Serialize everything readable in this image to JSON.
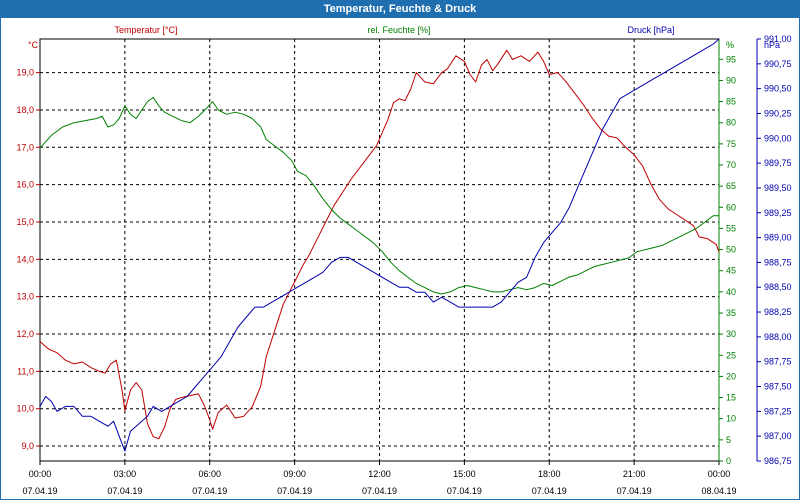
{
  "chart_data": {
    "type": "line",
    "title": "Temperatur, Feuchte & Druck",
    "axis_titles": {
      "left_unit": "°C",
      "left_series": "Temperatur [°C]",
      "middle_series": "rel. Feuchte [%]",
      "right_series": "Druck [hPa]",
      "right_pct_unit": "%",
      "right_unit": "hPa"
    },
    "x": {
      "min": 0,
      "max": 24,
      "ticks": [
        0,
        3,
        6,
        9,
        12,
        15,
        18,
        21,
        24
      ],
      "time_labels": [
        "00:00",
        "03:00",
        "06:00",
        "09:00",
        "12:00",
        "15:00",
        "18:00",
        "21:00",
        "00:00"
      ],
      "date_labels": [
        "07.04.19",
        "07.04.19",
        "07.04.19",
        "07.04.19",
        "07.04.19",
        "07.04.19",
        "07.04.19",
        "07.04.19",
        "08.04.19"
      ]
    },
    "y_temp": {
      "min": 8.6,
      "max": 19.9,
      "ticks": [
        9.0,
        10.0,
        11.0,
        12.0,
        13.0,
        14.0,
        15.0,
        16.0,
        17.0,
        18.0,
        19.0
      ],
      "labels": [
        "9,0",
        "10,0",
        "11,0",
        "12,0",
        "13,0",
        "14,0",
        "15,0",
        "16,0",
        "17,0",
        "18,0",
        "19,0"
      ]
    },
    "y_hum": {
      "min": 0,
      "max": 99.8,
      "ticks": [
        0,
        5,
        10,
        15,
        20,
        25,
        30,
        35,
        40,
        45,
        50,
        55,
        60,
        65,
        70,
        75,
        80,
        85,
        90,
        95
      ],
      "labels": [
        "0",
        "5",
        "10",
        "15",
        "20",
        "25",
        "30",
        "35",
        "40",
        "45",
        "50",
        "55",
        "60",
        "65",
        "70",
        "75",
        "80",
        "85",
        "90",
        "95"
      ]
    },
    "y_press": {
      "min": 986.75,
      "max": 991.0,
      "ticks": [
        986.75,
        987.0,
        987.25,
        987.5,
        987.75,
        988.0,
        988.25,
        988.5,
        988.75,
        989.0,
        989.25,
        989.5,
        989.75,
        990.0,
        990.25,
        990.5,
        990.75,
        991.0
      ],
      "labels": [
        "986,75",
        "987,00",
        "987,25",
        "987,50",
        "987,75",
        "988,00",
        "988,25",
        "988,50",
        "988,75",
        "989,00",
        "989,25",
        "989,50",
        "989,75",
        "990,00",
        "990,25",
        "990,50",
        "990,75",
        "991,00"
      ]
    },
    "series": [
      {
        "name": "Temperatur [°C]",
        "axis": "temp",
        "color": "#c00000",
        "points": [
          [
            0,
            11.8
          ],
          [
            0.3,
            11.6
          ],
          [
            0.6,
            11.5
          ],
          [
            0.9,
            11.3
          ],
          [
            1.2,
            11.2
          ],
          [
            1.5,
            11.25
          ],
          [
            1.8,
            11.1
          ],
          [
            2.1,
            11.0
          ],
          [
            2.3,
            10.95
          ],
          [
            2.5,
            11.2
          ],
          [
            2.7,
            11.3
          ],
          [
            2.9,
            10.5
          ],
          [
            3.0,
            9.95
          ],
          [
            3.2,
            10.5
          ],
          [
            3.4,
            10.7
          ],
          [
            3.6,
            10.5
          ],
          [
            3.8,
            9.6
          ],
          [
            4.0,
            9.25
          ],
          [
            4.2,
            9.2
          ],
          [
            4.4,
            9.5
          ],
          [
            4.6,
            10.0
          ],
          [
            4.8,
            10.25
          ],
          [
            5.0,
            10.3
          ],
          [
            5.3,
            10.35
          ],
          [
            5.6,
            10.4
          ],
          [
            5.8,
            10.1
          ],
          [
            6.0,
            9.7
          ],
          [
            6.1,
            9.45
          ],
          [
            6.3,
            9.9
          ],
          [
            6.6,
            10.1
          ],
          [
            6.9,
            9.75
          ],
          [
            7.2,
            9.8
          ],
          [
            7.5,
            10.05
          ],
          [
            7.8,
            10.6
          ],
          [
            8.0,
            11.4
          ],
          [
            8.3,
            12.1
          ],
          [
            8.6,
            12.8
          ],
          [
            8.9,
            13.25
          ],
          [
            9.1,
            13.55
          ],
          [
            9.3,
            13.85
          ],
          [
            9.5,
            14.1
          ],
          [
            9.8,
            14.55
          ],
          [
            10.1,
            15.0
          ],
          [
            10.4,
            15.45
          ],
          [
            10.7,
            15.8
          ],
          [
            11.0,
            16.15
          ],
          [
            11.3,
            16.45
          ],
          [
            11.6,
            16.75
          ],
          [
            11.9,
            17.05
          ],
          [
            12.1,
            17.4
          ],
          [
            12.3,
            17.75
          ],
          [
            12.5,
            18.2
          ],
          [
            12.7,
            18.3
          ],
          [
            12.9,
            18.25
          ],
          [
            13.1,
            18.55
          ],
          [
            13.3,
            19.0
          ],
          [
            13.6,
            18.75
          ],
          [
            13.9,
            18.7
          ],
          [
            14.2,
            19.0
          ],
          [
            14.4,
            19.1
          ],
          [
            14.7,
            19.45
          ],
          [
            15.0,
            19.3
          ],
          [
            15.2,
            18.95
          ],
          [
            15.4,
            18.75
          ],
          [
            15.6,
            19.2
          ],
          [
            15.8,
            19.35
          ],
          [
            16.0,
            19.05
          ],
          [
            16.2,
            19.25
          ],
          [
            16.5,
            19.6
          ],
          [
            16.7,
            19.35
          ],
          [
            17.0,
            19.45
          ],
          [
            17.3,
            19.3
          ],
          [
            17.6,
            19.55
          ],
          [
            17.8,
            19.3
          ],
          [
            18.0,
            18.95
          ],
          [
            18.3,
            19.0
          ],
          [
            18.6,
            18.75
          ],
          [
            18.9,
            18.45
          ],
          [
            19.2,
            18.15
          ],
          [
            19.5,
            17.8
          ],
          [
            19.8,
            17.5
          ],
          [
            20.1,
            17.3
          ],
          [
            20.4,
            17.25
          ],
          [
            20.7,
            17.0
          ],
          [
            21.0,
            16.8
          ],
          [
            21.3,
            16.5
          ],
          [
            21.6,
            16.0
          ],
          [
            21.9,
            15.6
          ],
          [
            22.2,
            15.35
          ],
          [
            22.5,
            15.2
          ],
          [
            22.8,
            15.05
          ],
          [
            23.1,
            14.9
          ],
          [
            23.3,
            14.6
          ],
          [
            23.6,
            14.55
          ],
          [
            23.9,
            14.4
          ],
          [
            24.0,
            14.2
          ]
        ]
      },
      {
        "name": "rel. Feuchte [%]",
        "axis": "hum",
        "color": "#008000",
        "points": [
          [
            0,
            74
          ],
          [
            0.4,
            77
          ],
          [
            0.8,
            79
          ],
          [
            1.2,
            80
          ],
          [
            1.6,
            80.5
          ],
          [
            2.0,
            81
          ],
          [
            2.2,
            81.5
          ],
          [
            2.4,
            79
          ],
          [
            2.6,
            79.5
          ],
          [
            2.8,
            81
          ],
          [
            3.0,
            84
          ],
          [
            3.2,
            82
          ],
          [
            3.4,
            81
          ],
          [
            3.6,
            83
          ],
          [
            3.8,
            85
          ],
          [
            4.0,
            86
          ],
          [
            4.2,
            84
          ],
          [
            4.4,
            82.5
          ],
          [
            4.7,
            81.5
          ],
          [
            5.0,
            80.5
          ],
          [
            5.3,
            80
          ],
          [
            5.6,
            81.5
          ],
          [
            5.9,
            83.5
          ],
          [
            6.1,
            85
          ],
          [
            6.3,
            83
          ],
          [
            6.6,
            82
          ],
          [
            6.9,
            82.5
          ],
          [
            7.2,
            82
          ],
          [
            7.5,
            81
          ],
          [
            7.8,
            79
          ],
          [
            8.0,
            76
          ],
          [
            8.3,
            74.5
          ],
          [
            8.6,
            73
          ],
          [
            8.9,
            71
          ],
          [
            9.1,
            68.5
          ],
          [
            9.4,
            67.5
          ],
          [
            9.7,
            65
          ],
          [
            10.0,
            62
          ],
          [
            10.3,
            59.5
          ],
          [
            10.6,
            57.5
          ],
          [
            10.9,
            56
          ],
          [
            11.2,
            54.5
          ],
          [
            11.5,
            53
          ],
          [
            11.8,
            51.5
          ],
          [
            12.1,
            49.5
          ],
          [
            12.4,
            47
          ],
          [
            12.7,
            45
          ],
          [
            13.0,
            43.5
          ],
          [
            13.3,
            42
          ],
          [
            13.6,
            41
          ],
          [
            13.9,
            40
          ],
          [
            14.2,
            39.5
          ],
          [
            14.5,
            40
          ],
          [
            14.8,
            41
          ],
          [
            15.1,
            41.5
          ],
          [
            15.4,
            41
          ],
          [
            15.7,
            40.5
          ],
          [
            16.0,
            40
          ],
          [
            16.3,
            40
          ],
          [
            16.6,
            40.5
          ],
          [
            16.9,
            41
          ],
          [
            17.2,
            40.5
          ],
          [
            17.5,
            41
          ],
          [
            17.8,
            42
          ],
          [
            18.1,
            41.5
          ],
          [
            18.4,
            42.5
          ],
          [
            18.7,
            43.5
          ],
          [
            19.0,
            44
          ],
          [
            19.3,
            45
          ],
          [
            19.6,
            46
          ],
          [
            19.9,
            46.5
          ],
          [
            20.2,
            47
          ],
          [
            20.5,
            47.5
          ],
          [
            20.8,
            48
          ],
          [
            21.1,
            49.5
          ],
          [
            21.4,
            50
          ],
          [
            21.7,
            50.5
          ],
          [
            22.0,
            51
          ],
          [
            22.3,
            52
          ],
          [
            22.6,
            53
          ],
          [
            22.9,
            54
          ],
          [
            23.2,
            55
          ],
          [
            23.5,
            56.5
          ],
          [
            23.8,
            58
          ],
          [
            24.0,
            58
          ]
        ]
      },
      {
        "name": "Druck [hPa]",
        "axis": "press",
        "color": "#0000b0",
        "points": [
          [
            0,
            987.3
          ],
          [
            0.2,
            987.4
          ],
          [
            0.4,
            987.35
          ],
          [
            0.6,
            987.25
          ],
          [
            0.9,
            987.3
          ],
          [
            1.2,
            987.3
          ],
          [
            1.5,
            987.2
          ],
          [
            1.8,
            987.2
          ],
          [
            2.1,
            987.15
          ],
          [
            2.4,
            987.1
          ],
          [
            2.6,
            987.15
          ],
          [
            2.8,
            987.0
          ],
          [
            3.0,
            986.85
          ],
          [
            3.2,
            987.05
          ],
          [
            3.4,
            987.1
          ],
          [
            3.6,
            987.15
          ],
          [
            3.8,
            987.2
          ],
          [
            4.0,
            987.3
          ],
          [
            4.3,
            987.25
          ],
          [
            4.6,
            987.3
          ],
          [
            4.9,
            987.35
          ],
          [
            5.2,
            987.4
          ],
          [
            5.5,
            987.5
          ],
          [
            5.8,
            987.6
          ],
          [
            6.1,
            987.7
          ],
          [
            6.4,
            987.8
          ],
          [
            6.7,
            987.95
          ],
          [
            7.0,
            988.1
          ],
          [
            7.3,
            988.2
          ],
          [
            7.6,
            988.3
          ],
          [
            7.9,
            988.3
          ],
          [
            8.2,
            988.35
          ],
          [
            8.5,
            988.4
          ],
          [
            8.8,
            988.45
          ],
          [
            9.1,
            988.5
          ],
          [
            9.4,
            988.55
          ],
          [
            9.7,
            988.6
          ],
          [
            10.0,
            988.65
          ],
          [
            10.3,
            988.75
          ],
          [
            10.6,
            988.8
          ],
          [
            10.9,
            988.8
          ],
          [
            11.2,
            988.75
          ],
          [
            11.5,
            988.7
          ],
          [
            11.8,
            988.65
          ],
          [
            12.1,
            988.6
          ],
          [
            12.4,
            988.55
          ],
          [
            12.7,
            988.5
          ],
          [
            13.0,
            988.5
          ],
          [
            13.3,
            988.45
          ],
          [
            13.6,
            988.45
          ],
          [
            13.9,
            988.35
          ],
          [
            14.2,
            988.4
          ],
          [
            14.5,
            988.35
          ],
          [
            14.8,
            988.3
          ],
          [
            15.1,
            988.3
          ],
          [
            15.4,
            988.3
          ],
          [
            15.7,
            988.3
          ],
          [
            16.0,
            988.3
          ],
          [
            16.3,
            988.35
          ],
          [
            16.6,
            988.45
          ],
          [
            16.9,
            988.55
          ],
          [
            17.2,
            988.6
          ],
          [
            17.5,
            988.8
          ],
          [
            17.8,
            988.95
          ],
          [
            18.1,
            989.05
          ],
          [
            18.4,
            989.15
          ],
          [
            18.7,
            989.3
          ],
          [
            19.0,
            989.5
          ],
          [
            19.3,
            989.7
          ],
          [
            19.6,
            989.9
          ],
          [
            19.9,
            990.1
          ],
          [
            20.2,
            990.25
          ],
          [
            20.5,
            990.4
          ],
          [
            20.8,
            990.45
          ],
          [
            21.1,
            990.5
          ],
          [
            21.4,
            990.55
          ],
          [
            21.7,
            990.6
          ],
          [
            22.0,
            990.65
          ],
          [
            22.3,
            990.7
          ],
          [
            22.6,
            990.75
          ],
          [
            22.9,
            990.8
          ],
          [
            23.2,
            990.85
          ],
          [
            23.5,
            990.9
          ],
          [
            23.8,
            990.95
          ],
          [
            24.0,
            991.0
          ]
        ]
      }
    ]
  }
}
